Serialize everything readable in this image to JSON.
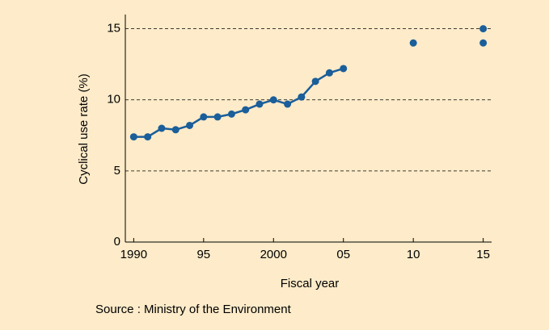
{
  "chart_data": {
    "type": "line",
    "ylabel": "Cyclical use rate (%)",
    "xlabel": "Fiscal year",
    "source": "Source : Ministry of the Environment",
    "xlim": [
      1989.4,
      2015.6
    ],
    "xticks": [
      1990,
      {
        "value": 1995,
        "label": "95"
      },
      2000,
      {
        "value": 2005,
        "label": "05"
      },
      {
        "value": 2010,
        "label": "10"
      },
      {
        "value": 2015,
        "label": "15"
      }
    ],
    "ylim": [
      0,
      16
    ],
    "yticks": [
      0,
      5,
      10,
      15
    ],
    "grid": true,
    "series": [
      {
        "color": "#1a5e9a",
        "line": true,
        "x": [
          1990,
          1991,
          1992,
          1993,
          1994,
          1995,
          1996,
          1997,
          1998,
          1999,
          2000,
          2001,
          2002,
          2003,
          2004,
          2005
        ],
        "values": [
          7.4,
          7.4,
          8.0,
          7.9,
          8.2,
          8.8,
          8.8,
          9.0,
          9.3,
          9.7,
          10.0,
          9.7,
          10.2,
          11.3,
          11.9,
          12.2
        ]
      },
      {
        "color": "#1a5e9a",
        "line": false,
        "x": [
          2010,
          2015,
          2015
        ],
        "values": [
          14,
          15,
          14
        ]
      }
    ]
  }
}
